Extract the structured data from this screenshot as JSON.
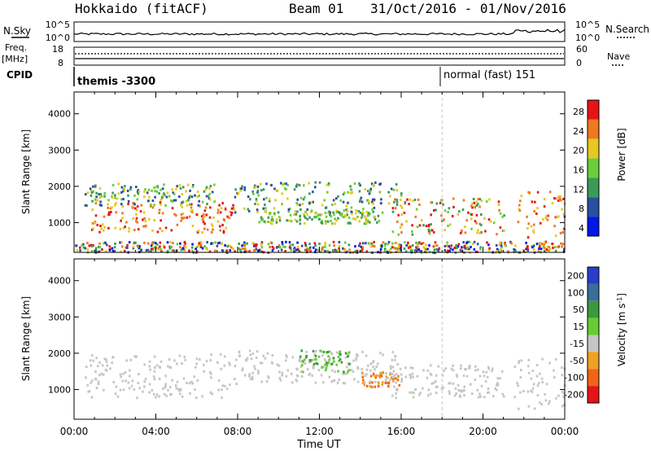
{
  "header": {
    "station": "Hokkaido (fitACF)",
    "beam": "Beam 01",
    "date_range": "31/Oct/2016 - 01/Nov/2016"
  },
  "nsky": {
    "label": "N.Sky",
    "right_label": "N.Search",
    "left_ticks": [
      "10^5",
      "10^0"
    ],
    "right_ticks": [
      "10^5",
      "10^0"
    ]
  },
  "freq": {
    "label_top": "Freq.",
    "label_unit": "[MHz]",
    "left_ticks": [
      "18",
      "8"
    ],
    "right_ticks": [
      "60",
      "0"
    ],
    "right_label": "Nave"
  },
  "cpid": {
    "label": "CPID",
    "entries": [
      {
        "text": "themis -3300",
        "start_hour": 0
      },
      {
        "text": "normal (fast) 151",
        "start_hour": 18
      }
    ]
  },
  "chart_data": [
    {
      "type": "heatmap",
      "name": "power",
      "ylabel": "Slant Range [km]",
      "yticks": [
        1000,
        2000,
        3000,
        4000
      ],
      "ylim": [
        180,
        4600
      ],
      "colorbar_label": "Power [dB]",
      "colorbar_ticks": [
        4,
        8,
        12,
        16,
        20,
        24,
        28
      ],
      "colors": [
        "#0018e6",
        "#2850a0",
        "#3a9a58",
        "#6ccd3a",
        "#e6c81e",
        "#f0781e",
        "#e61414"
      ],
      "bands": [
        {
          "hours": [
            0.8,
            7.8
          ],
          "range_km": [
            750,
            1600
          ],
          "level": "high"
        },
        {
          "hours": [
            0.5,
            7.0
          ],
          "range_km": [
            1500,
            2100
          ],
          "level": "mid"
        },
        {
          "hours": [
            7.8,
            16.0
          ],
          "range_km": [
            1300,
            2150
          ],
          "level": "mid"
        },
        {
          "hours": [
            9.0,
            15.0
          ],
          "range_km": [
            1000,
            1350
          ],
          "level": "low"
        },
        {
          "hours": [
            15.5,
            21.0
          ],
          "range_km": [
            700,
            1700
          ],
          "level": "mixed"
        },
        {
          "hours": [
            21.5,
            24.0
          ],
          "range_km": [
            500,
            1900
          ],
          "level": "high"
        },
        {
          "hours": [
            0.0,
            24.0
          ],
          "range_km": [
            200,
            500
          ],
          "level": "ground"
        }
      ]
    },
    {
      "type": "heatmap",
      "name": "velocity",
      "ylabel": "Slant Range [km]",
      "yticks": [
        1000,
        2000,
        3000,
        4000
      ],
      "ylim": [
        180,
        4600
      ],
      "colorbar_label": "Velocity [m s^-1]",
      "colorbar_ticks": [
        200,
        100,
        50,
        15,
        -15,
        -50,
        -100,
        -200
      ],
      "colors": [
        "#2a3cc8",
        "#386e98",
        "#3a9a3a",
        "#66cc33",
        "#c6c6c2",
        "#f0a022",
        "#f06418",
        "#e61414"
      ],
      "bands": [
        {
          "hours": [
            0.5,
            8.0
          ],
          "range_km": [
            800,
            2000
          ],
          "value": "ground"
        },
        {
          "hours": [
            8.0,
            16.0
          ],
          "range_km": [
            1200,
            2100
          ],
          "value": "ground"
        },
        {
          "hours": [
            11.0,
            13.5
          ],
          "range_km": [
            1500,
            2100
          ],
          "value": "positive"
        },
        {
          "hours": [
            14.0,
            16.0
          ],
          "range_km": [
            1100,
            1500
          ],
          "value": "negative"
        },
        {
          "hours": [
            15.5,
            21.0
          ],
          "range_km": [
            800,
            1700
          ],
          "value": "ground"
        },
        {
          "hours": [
            21.5,
            24.0
          ],
          "range_km": [
            500,
            1900
          ],
          "value": "ground"
        }
      ]
    }
  ],
  "xaxis": {
    "ticks": [
      "00:00",
      "04:00",
      "08:00",
      "12:00",
      "16:00",
      "20:00",
      "00:00"
    ],
    "label": "Time UT"
  },
  "colors": {
    "mode_change_line": "#c8c8c8"
  }
}
